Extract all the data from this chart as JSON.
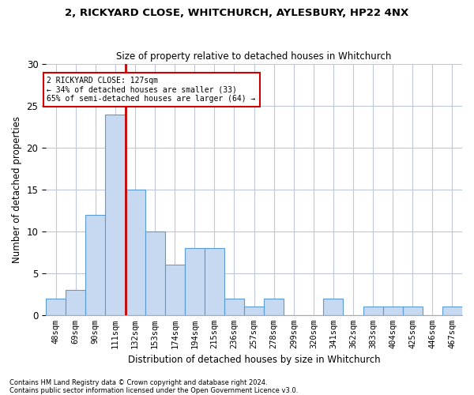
{
  "title1": "2, RICKYARD CLOSE, WHITCHURCH, AYLESBURY, HP22 4NX",
  "title2": "Size of property relative to detached houses in Whitchurch",
  "xlabel": "Distribution of detached houses by size in Whitchurch",
  "ylabel": "Number of detached properties",
  "footer1": "Contains HM Land Registry data © Crown copyright and database right 2024.",
  "footer2": "Contains public sector information licensed under the Open Government Licence v3.0.",
  "bin_labels": [
    "48sqm",
    "69sqm",
    "90sqm",
    "111sqm",
    "132sqm",
    "153sqm",
    "174sqm",
    "194sqm",
    "215sqm",
    "236sqm",
    "257sqm",
    "278sqm",
    "299sqm",
    "320sqm",
    "341sqm",
    "362sqm",
    "383sqm",
    "404sqm",
    "425sqm",
    "446sqm",
    "467sqm"
  ],
  "counts": [
    2,
    3,
    12,
    24,
    15,
    10,
    6,
    8,
    8,
    2,
    1,
    2,
    0,
    0,
    2,
    0,
    1,
    1,
    1,
    0,
    1
  ],
  "bar_color": "#c6d9f0",
  "bar_edge_color": "#5b9bd5",
  "vline_index": 3.5,
  "vline_color": "#cc0000",
  "annotation_text": "2 RICKYARD CLOSE: 127sqm\n← 34% of detached houses are smaller (33)\n65% of semi-detached houses are larger (64) →",
  "annotation_box_color": "#ffffff",
  "annotation_box_edge": "#cc0000",
  "ylim": [
    0,
    30
  ],
  "yticks": [
    0,
    5,
    10,
    15,
    20,
    25,
    30
  ],
  "bg_color": "#ffffff",
  "grid_color": "#c0c8d8",
  "title1_fontsize": 9.5,
  "title2_fontsize": 8.5,
  "ylabel_fontsize": 8.5,
  "xlabel_fontsize": 8.5,
  "tick_fontsize": 7.5,
  "ytick_fontsize": 8.5,
  "footer_fontsize": 6.0
}
